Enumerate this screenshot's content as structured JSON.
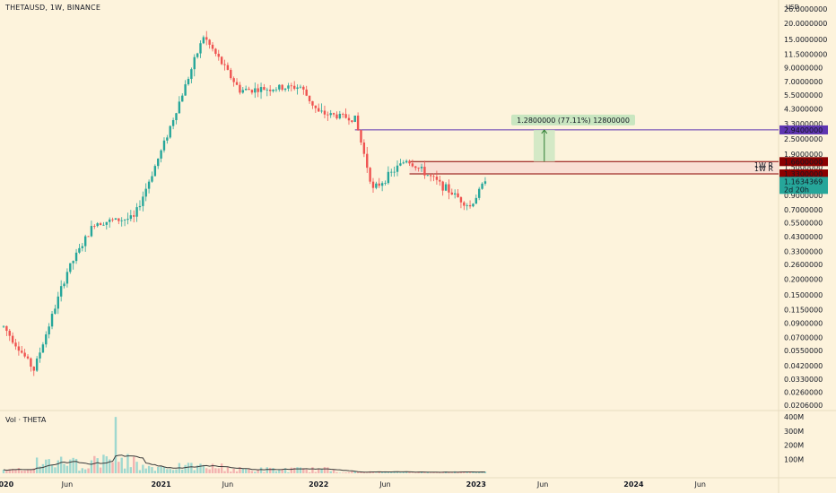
{
  "header": {
    "title": "THETAUSD, 1W, BINANCE",
    "currency": "USD",
    "vol_label": "Vol · THETA"
  },
  "price_axis": {
    "ticks": [
      {
        "label": "26.0000000",
        "value": 26
      },
      {
        "label": "20.0000000",
        "value": 20
      },
      {
        "label": "15.0000000",
        "value": 15
      },
      {
        "label": "11.5000000",
        "value": 11.5
      },
      {
        "label": "9.0000000",
        "value": 9
      },
      {
        "label": "7.0000000",
        "value": 7
      },
      {
        "label": "5.5000000",
        "value": 5.5
      },
      {
        "label": "4.3000000",
        "value": 4.3
      },
      {
        "label": "3.3000000",
        "value": 3.3
      },
      {
        "label": "2.5000000",
        "value": 2.5
      },
      {
        "label": "1.9000000",
        "value": 1.9
      },
      {
        "label": "1.5000000",
        "value": 1.5
      },
      {
        "label": "0.9000000",
        "value": 0.9
      },
      {
        "label": "0.7000000",
        "value": 0.7
      },
      {
        "label": "0.5500000",
        "value": 0.55
      },
      {
        "label": "0.4300000",
        "value": 0.43
      },
      {
        "label": "0.3300000",
        "value": 0.33
      },
      {
        "label": "0.2600000",
        "value": 0.26
      },
      {
        "label": "0.2000000",
        "value": 0.2
      },
      {
        "label": "0.1500000",
        "value": 0.15
      },
      {
        "label": "0.1150000",
        "value": 0.115
      },
      {
        "label": "0.0900000",
        "value": 0.09
      },
      {
        "label": "0.0700000",
        "value": 0.07
      },
      {
        "label": "0.0550000",
        "value": 0.055
      },
      {
        "label": "0.0420000",
        "value": 0.042
      },
      {
        "label": "0.0330000",
        "value": 0.033
      },
      {
        "label": "0.0260000",
        "value": 0.026
      },
      {
        "label": "0.0206000",
        "value": 0.0206
      }
    ],
    "badges": [
      {
        "label": "2.9400000",
        "value": 2.94,
        "color": "#5e35b1"
      },
      {
        "label": "1.6600000",
        "value": 1.66,
        "color": "#8b0000"
      },
      {
        "label": "1.3300000",
        "value": 1.33,
        "color": "#8b0000"
      },
      {
        "label": "1.1634369",
        "value": 1.1634369,
        "color": "#26a69a",
        "sub": "2d 20h"
      }
    ],
    "zone_tags": [
      {
        "label": "1W R",
        "value": 1.57
      },
      {
        "label": "1W R",
        "value": 1.47
      }
    ]
  },
  "volume_axis": {
    "ticks": [
      {
        "label": "400M",
        "value": 400
      },
      {
        "label": "300M",
        "value": 300
      },
      {
        "label": "200M",
        "value": 200
      },
      {
        "label": "100M",
        "value": 100
      }
    ]
  },
  "time_axis": {
    "labels": [
      {
        "label": "2020",
        "year": true,
        "date": "2020-01-06"
      },
      {
        "label": "Jun",
        "year": false,
        "date": "2020-06-01"
      },
      {
        "label": "2021",
        "year": true,
        "date": "2021-01-04"
      },
      {
        "label": "Jun",
        "year": false,
        "date": "2021-06-07"
      },
      {
        "label": "2022",
        "year": true,
        "date": "2022-01-03"
      },
      {
        "label": "Jun",
        "year": false,
        "date": "2022-06-06"
      },
      {
        "label": "2023",
        "year": true,
        "date": "2023-01-02"
      },
      {
        "label": "Jun",
        "year": false,
        "date": "2023-06-05"
      },
      {
        "label": "2024",
        "year": true,
        "date": "2024-01-01"
      },
      {
        "label": "Jun",
        "year": false,
        "date": "2024-06-03"
      }
    ]
  },
  "measure": {
    "label": "1.2800000 (77.11%) 12800000",
    "from_price": 1.66,
    "to_price": 2.94
  },
  "chart_data": {
    "type": "candlestick",
    "symbol": "THETAUSD",
    "interval": "1W",
    "exchange": "BINANCE",
    "scale": "log",
    "ylim": [
      0.0206,
      26
    ],
    "colors": {
      "up": "#26a69a",
      "down": "#ef5350",
      "volume_ma": "#3a3a3a"
    },
    "horizontal_levels": [
      2.94,
      1.66,
      1.33
    ],
    "resistance_zone": [
      1.33,
      1.66
    ],
    "last_price": 1.1634369,
    "key_points": [
      {
        "date": "2020-01-06",
        "close": 0.085
      },
      {
        "date": "2020-03-16",
        "low": 0.039
      },
      {
        "date": "2020-06-01",
        "close": 0.23
      },
      {
        "date": "2020-08-03",
        "close": 0.55
      },
      {
        "date": "2020-11-02",
        "close": 0.6
      },
      {
        "date": "2021-01-04",
        "close": 2.0
      },
      {
        "date": "2021-04-12",
        "high": 15.9
      },
      {
        "date": "2021-07-05",
        "close": 6.0
      },
      {
        "date": "2021-11-22",
        "close": 6.4
      },
      {
        "date": "2022-01-03",
        "close": 4.0
      },
      {
        "date": "2022-03-28",
        "close": 3.6
      },
      {
        "date": "2022-05-09",
        "low": 1.0
      },
      {
        "date": "2022-07-25",
        "high": 1.73
      },
      {
        "date": "2022-12-19",
        "low": 0.74
      },
      {
        "date": "2023-01-23",
        "close": 1.16
      }
    ]
  }
}
